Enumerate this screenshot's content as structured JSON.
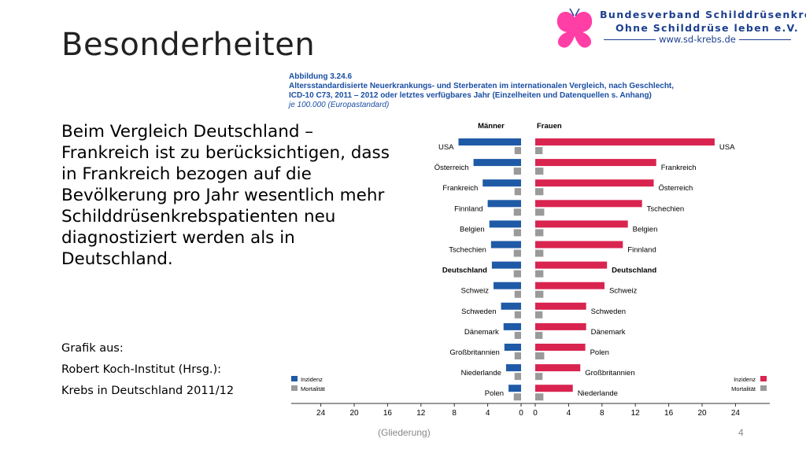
{
  "slide": {
    "title": "Besonderheiten",
    "body": "Beim Vergleich Deutschland – Frankreich ist zu berücksichtigen, dass in Frankreich bezogen auf die Bevölkerung pro Jahr wesentlich mehr Schilddrüsenkrebspatienten neu diagnostiziert werden als in Deutschland.",
    "source_lines": [
      "Grafik aus:",
      "Robert Koch-Institut (Hrsg.):",
      "Krebs in Deutschland 2011/12"
    ],
    "footer_center": "(Gliederung)",
    "page_number": "4"
  },
  "logo": {
    "line1": "Bundesverband Schilddrüsenkrebs",
    "line2": "Ohne Schilddrüse leben e.V.",
    "url": "www.sd-krebs.de",
    "logo_color": "#ff3fa6",
    "text_color": "#1c3f8f"
  },
  "figure": {
    "number": "Abbildung 3.24.6",
    "title": "Altersstandardisierte Neuerkrankungs- und Sterberaten im internationalen Vergleich, nach Geschlecht, ICD-10 C73, 2011 – 2012 oder letztes verfügbares Jahr (Einzelheiten und Datenquellen s. Anhang)",
    "subtitle": "je 100.000 (Europastandard)"
  },
  "chart_data": {
    "type": "bar",
    "orientation": "horizontal",
    "layout": "butterfly",
    "x_ticks": [
      "24",
      "20",
      "16",
      "12",
      "8",
      "4",
      "0"
    ],
    "xlim": [
      0,
      26
    ],
    "colors": {
      "men_incidence": "#1f5aa6",
      "women_incidence": "#d9244f",
      "mortality": "#9a9a9a"
    },
    "men": {
      "header": "Männer",
      "highlight": "Deutschland",
      "categories": [
        "USA",
        "Österreich",
        "Frankreich",
        "Finnland",
        "Belgien",
        "Tschechien",
        "Deutschland",
        "Schweiz",
        "Schweden",
        "Dänemark",
        "Großbritannien",
        "Niederlande",
        "Polen"
      ],
      "incidence": [
        7.5,
        5.7,
        4.6,
        4.0,
        3.8,
        3.6,
        3.5,
        3.3,
        2.4,
        2.1,
        2.0,
        1.8,
        1.5
      ],
      "mortality": [
        0.4,
        0.5,
        0.4,
        0.5,
        0.5,
        0.5,
        0.5,
        0.4,
        0.4,
        0.4,
        0.4,
        0.4,
        0.5
      ],
      "legend": {
        "incidence": "Inzidenz",
        "mortality": "Mortalität"
      }
    },
    "women": {
      "header": "Frauen",
      "highlight": "Deutschland",
      "categories": [
        "USA",
        "Frankreich",
        "Österreich",
        "Tschechien",
        "Belgien",
        "Finnland",
        "Deutschland",
        "Schweiz",
        "Schweden",
        "Dänemark",
        "Polen",
        "Großbritannien",
        "Niederlande"
      ],
      "incidence": [
        21.5,
        14.5,
        14.2,
        12.8,
        11.1,
        10.5,
        8.6,
        8.3,
        6.1,
        6.1,
        6.0,
        5.4,
        4.5
      ],
      "mortality": [
        0.5,
        0.6,
        0.6,
        0.7,
        0.6,
        0.6,
        0.6,
        0.6,
        0.5,
        0.5,
        0.7,
        0.5,
        0.6
      ],
      "legend": {
        "incidence": "Inzidenz",
        "mortality": "Mortalität"
      }
    }
  }
}
